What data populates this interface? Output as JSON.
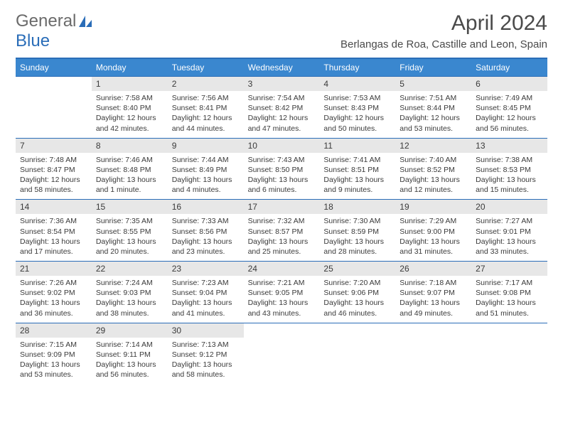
{
  "logo": {
    "general": "General",
    "blue": "Blue"
  },
  "title": "April 2024",
  "subtitle": "Berlangas de Roa, Castille and Leon, Spain",
  "header_color": "#3a87cf",
  "border_color": "#2a6db8",
  "daynum_bg": "#e7e7e7",
  "text_color": "#3a3a3a",
  "weekdays": [
    "Sunday",
    "Monday",
    "Tuesday",
    "Wednesday",
    "Thursday",
    "Friday",
    "Saturday"
  ],
  "first_weekday_offset": 1,
  "days_in_month": 30,
  "days": {
    "1": {
      "sunrise": "7:58 AM",
      "sunset": "8:40 PM",
      "daylight": "12 hours and 42 minutes."
    },
    "2": {
      "sunrise": "7:56 AM",
      "sunset": "8:41 PM",
      "daylight": "12 hours and 44 minutes."
    },
    "3": {
      "sunrise": "7:54 AM",
      "sunset": "8:42 PM",
      "daylight": "12 hours and 47 minutes."
    },
    "4": {
      "sunrise": "7:53 AM",
      "sunset": "8:43 PM",
      "daylight": "12 hours and 50 minutes."
    },
    "5": {
      "sunrise": "7:51 AM",
      "sunset": "8:44 PM",
      "daylight": "12 hours and 53 minutes."
    },
    "6": {
      "sunrise": "7:49 AM",
      "sunset": "8:45 PM",
      "daylight": "12 hours and 56 minutes."
    },
    "7": {
      "sunrise": "7:48 AM",
      "sunset": "8:47 PM",
      "daylight": "12 hours and 58 minutes."
    },
    "8": {
      "sunrise": "7:46 AM",
      "sunset": "8:48 PM",
      "daylight": "13 hours and 1 minute."
    },
    "9": {
      "sunrise": "7:44 AM",
      "sunset": "8:49 PM",
      "daylight": "13 hours and 4 minutes."
    },
    "10": {
      "sunrise": "7:43 AM",
      "sunset": "8:50 PM",
      "daylight": "13 hours and 6 minutes."
    },
    "11": {
      "sunrise": "7:41 AM",
      "sunset": "8:51 PM",
      "daylight": "13 hours and 9 minutes."
    },
    "12": {
      "sunrise": "7:40 AM",
      "sunset": "8:52 PM",
      "daylight": "13 hours and 12 minutes."
    },
    "13": {
      "sunrise": "7:38 AM",
      "sunset": "8:53 PM",
      "daylight": "13 hours and 15 minutes."
    },
    "14": {
      "sunrise": "7:36 AM",
      "sunset": "8:54 PM",
      "daylight": "13 hours and 17 minutes."
    },
    "15": {
      "sunrise": "7:35 AM",
      "sunset": "8:55 PM",
      "daylight": "13 hours and 20 minutes."
    },
    "16": {
      "sunrise": "7:33 AM",
      "sunset": "8:56 PM",
      "daylight": "13 hours and 23 minutes."
    },
    "17": {
      "sunrise": "7:32 AM",
      "sunset": "8:57 PM",
      "daylight": "13 hours and 25 minutes."
    },
    "18": {
      "sunrise": "7:30 AM",
      "sunset": "8:59 PM",
      "daylight": "13 hours and 28 minutes."
    },
    "19": {
      "sunrise": "7:29 AM",
      "sunset": "9:00 PM",
      "daylight": "13 hours and 31 minutes."
    },
    "20": {
      "sunrise": "7:27 AM",
      "sunset": "9:01 PM",
      "daylight": "13 hours and 33 minutes."
    },
    "21": {
      "sunrise": "7:26 AM",
      "sunset": "9:02 PM",
      "daylight": "13 hours and 36 minutes."
    },
    "22": {
      "sunrise": "7:24 AM",
      "sunset": "9:03 PM",
      "daylight": "13 hours and 38 minutes."
    },
    "23": {
      "sunrise": "7:23 AM",
      "sunset": "9:04 PM",
      "daylight": "13 hours and 41 minutes."
    },
    "24": {
      "sunrise": "7:21 AM",
      "sunset": "9:05 PM",
      "daylight": "13 hours and 43 minutes."
    },
    "25": {
      "sunrise": "7:20 AM",
      "sunset": "9:06 PM",
      "daylight": "13 hours and 46 minutes."
    },
    "26": {
      "sunrise": "7:18 AM",
      "sunset": "9:07 PM",
      "daylight": "13 hours and 49 minutes."
    },
    "27": {
      "sunrise": "7:17 AM",
      "sunset": "9:08 PM",
      "daylight": "13 hours and 51 minutes."
    },
    "28": {
      "sunrise": "7:15 AM",
      "sunset": "9:09 PM",
      "daylight": "13 hours and 53 minutes."
    },
    "29": {
      "sunrise": "7:14 AM",
      "sunset": "9:11 PM",
      "daylight": "13 hours and 56 minutes."
    },
    "30": {
      "sunrise": "7:13 AM",
      "sunset": "9:12 PM",
      "daylight": "13 hours and 58 minutes."
    }
  }
}
